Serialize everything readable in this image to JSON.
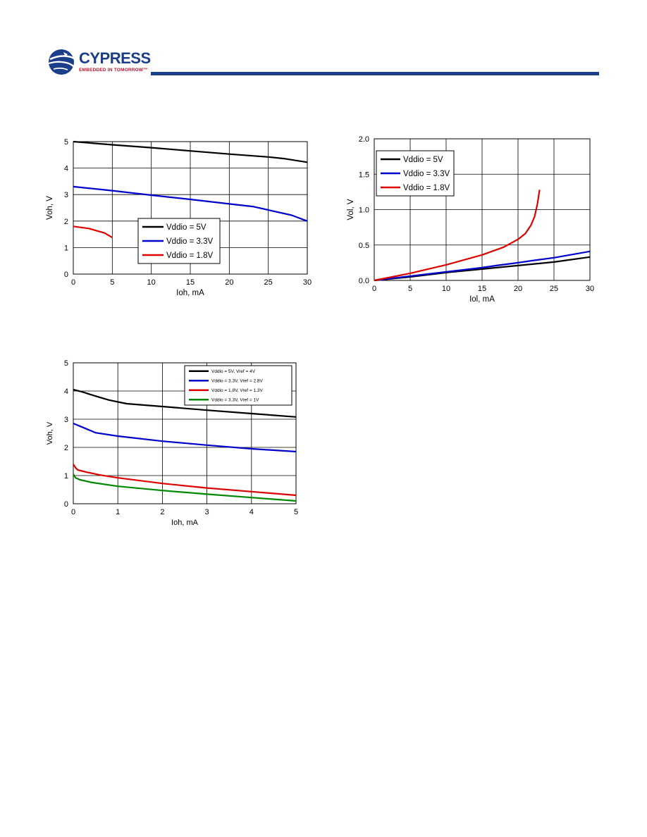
{
  "header": {
    "logo_text": "CYPRESS",
    "logo_tagline": "EMBEDDED IN TOMORROW™"
  },
  "chart_data": [
    {
      "type": "line",
      "xlabel": "Ioh, mA",
      "ylabel": "Voh, V",
      "xlim": [
        0,
        30
      ],
      "ylim": [
        0,
        5
      ],
      "xticks": [
        "0",
        "5",
        "10",
        "15",
        "20",
        "25",
        "30"
      ],
      "yticks": [
        "0",
        "1",
        "2",
        "3",
        "4",
        "5"
      ],
      "grid": true,
      "legend": "center-right",
      "series": [
        {
          "name": "Vddio = 5V",
          "color": "#000000",
          "points": [
            [
              0,
              5.0
            ],
            [
              5,
              4.88
            ],
            [
              10,
              4.77
            ],
            [
              15,
              4.65
            ],
            [
              20,
              4.53
            ],
            [
              25,
              4.42
            ],
            [
              27,
              4.36
            ],
            [
              30,
              4.22
            ]
          ]
        },
        {
          "name": "Vddio = 3.3V",
          "color": "#0000cc",
          "points": [
            [
              0,
              3.3
            ],
            [
              5,
              3.15
            ],
            [
              10,
              2.98
            ],
            [
              15,
              2.82
            ],
            [
              20,
              2.65
            ],
            [
              23,
              2.55
            ],
            [
              25,
              2.42
            ],
            [
              28,
              2.22
            ],
            [
              30,
              2.0
            ]
          ]
        },
        {
          "name": "Vddio = 1.8V",
          "color": "#dd0000",
          "points": [
            [
              0,
              1.8
            ],
            [
              2,
              1.72
            ],
            [
              4,
              1.55
            ],
            [
              5,
              1.38
            ]
          ]
        }
      ]
    },
    {
      "type": "line",
      "xlabel": "Iol, mA",
      "ylabel": "Vol, V",
      "xlim": [
        0,
        30
      ],
      "ylim": [
        0,
        2
      ],
      "xticks": [
        "0",
        "5",
        "10",
        "15",
        "20",
        "25",
        "30"
      ],
      "yticks": [
        "0.0",
        "0.5",
        "1.0",
        "1.5",
        "2.0"
      ],
      "grid": true,
      "legend": "top-left",
      "series": [
        {
          "name": "Vddio = 5V",
          "color": "#000000",
          "points": [
            [
              0,
              0
            ],
            [
              5,
              0.05
            ],
            [
              10,
              0.11
            ],
            [
              15,
              0.16
            ],
            [
              18,
              0.19
            ],
            [
              20,
              0.21
            ],
            [
              25,
              0.26
            ],
            [
              30,
              0.33
            ]
          ]
        },
        {
          "name": "Vddio = 3.3V",
          "color": "#0000cc",
          "points": [
            [
              0,
              0
            ],
            [
              5,
              0.06
            ],
            [
              10,
              0.12
            ],
            [
              15,
              0.18
            ],
            [
              17,
              0.21
            ],
            [
              20,
              0.25
            ],
            [
              22,
              0.28
            ],
            [
              25,
              0.32
            ],
            [
              30,
              0.41
            ]
          ]
        },
        {
          "name": "Vddio = 1.8V",
          "color": "#dd0000",
          "points": [
            [
              0,
              0
            ],
            [
              5,
              0.1
            ],
            [
              10,
              0.22
            ],
            [
              15,
              0.36
            ],
            [
              18,
              0.47
            ],
            [
              20,
              0.58
            ],
            [
              21,
              0.66
            ],
            [
              21.8,
              0.78
            ],
            [
              22.3,
              0.9
            ],
            [
              22.7,
              1.08
            ],
            [
              23,
              1.28
            ]
          ]
        }
      ]
    },
    {
      "type": "line",
      "xlabel": "Ioh, mA",
      "ylabel": "Voh, V",
      "xlim": [
        0,
        5
      ],
      "ylim": [
        0,
        5
      ],
      "xticks": [
        "0",
        "1",
        "2",
        "3",
        "4",
        "5"
      ],
      "yticks": [
        "0",
        "1",
        "2",
        "3",
        "4",
        "5"
      ],
      "grid": true,
      "legend": "top-right",
      "series": [
        {
          "name": "Vddio = 5V, Vref = 4V",
          "color": "#000000",
          "points": [
            [
              0,
              4.05
            ],
            [
              0.2,
              3.97
            ],
            [
              0.5,
              3.82
            ],
            [
              0.8,
              3.68
            ],
            [
              1.2,
              3.55
            ],
            [
              2,
              3.45
            ],
            [
              3,
              3.32
            ],
            [
              4,
              3.2
            ],
            [
              5,
              3.08
            ]
          ]
        },
        {
          "name": "Vddio = 3.3V, Vref = 2.8V",
          "color": "#0000cc",
          "points": [
            [
              0,
              2.85
            ],
            [
              0.2,
              2.72
            ],
            [
              0.5,
              2.52
            ],
            [
              1,
              2.4
            ],
            [
              2,
              2.22
            ],
            [
              3,
              2.08
            ],
            [
              4,
              1.95
            ],
            [
              5,
              1.85
            ]
          ]
        },
        {
          "name": "Vddio = 1.8V, Vref = 1.3V",
          "color": "#dd0000",
          "points": [
            [
              0,
              1.4
            ],
            [
              0.05,
              1.28
            ],
            [
              0.1,
              1.2
            ],
            [
              0.3,
              1.12
            ],
            [
              0.6,
              1.02
            ],
            [
              1,
              0.92
            ],
            [
              2,
              0.72
            ],
            [
              3,
              0.56
            ],
            [
              4,
              0.43
            ],
            [
              5,
              0.3
            ]
          ]
        },
        {
          "name": "Vddio = 3.3V, Vref = 1V",
          "color": "#008800",
          "points": [
            [
              0,
              1.05
            ],
            [
              0.05,
              0.92
            ],
            [
              0.15,
              0.85
            ],
            [
              0.4,
              0.76
            ],
            [
              1,
              0.62
            ],
            [
              2,
              0.47
            ],
            [
              3,
              0.34
            ],
            [
              4,
              0.22
            ],
            [
              5,
              0.1
            ]
          ]
        }
      ]
    }
  ]
}
